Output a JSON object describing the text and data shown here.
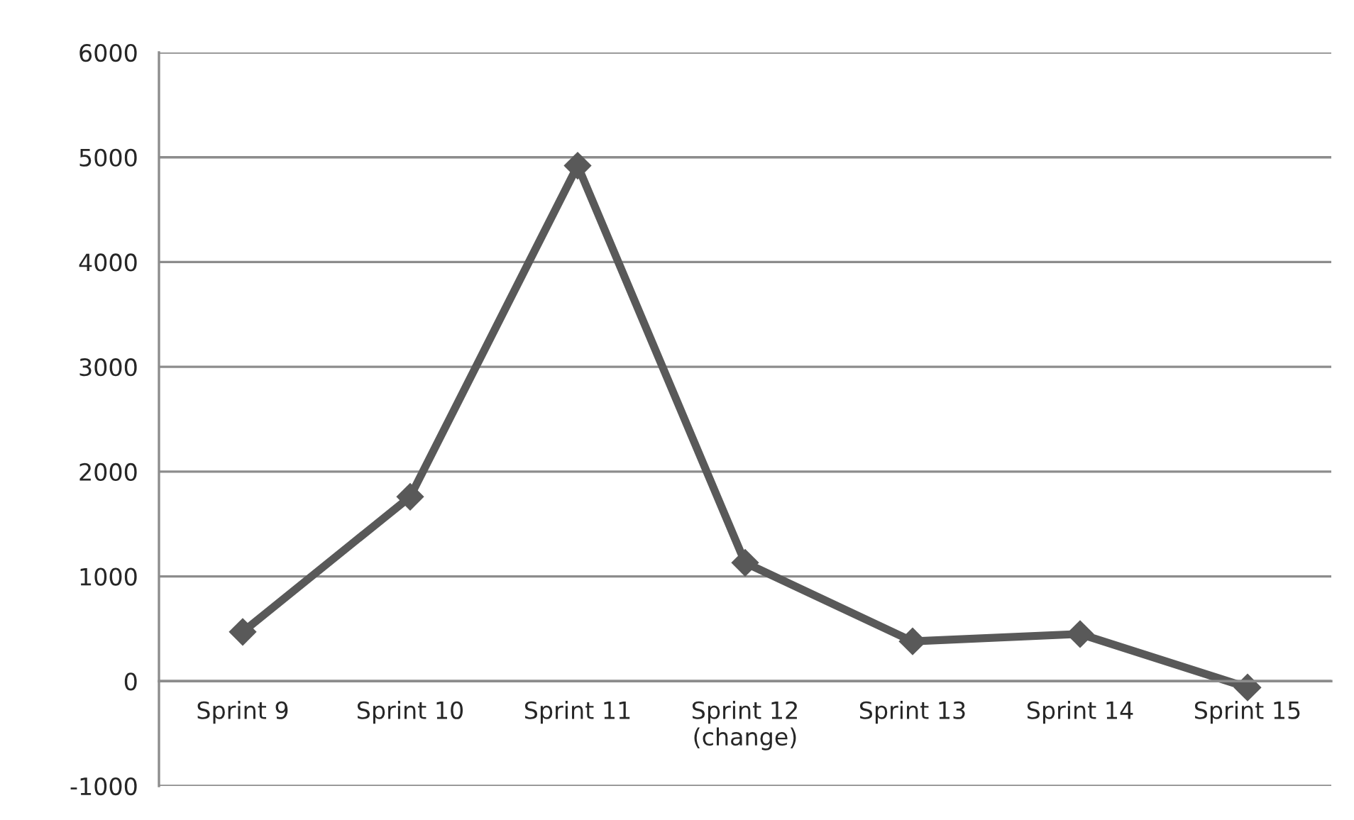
{
  "chart_data": {
    "type": "line",
    "categories": [
      "Sprint 9",
      "Sprint 10",
      "Sprint 11",
      "Sprint 12\n(change)",
      "Sprint 13",
      "Sprint 14",
      "Sprint 15"
    ],
    "series": [
      {
        "color": "#595959",
        "values": [
          470,
          1760,
          4920,
          1130,
          380,
          450,
          -60
        ]
      }
    ],
    "ylim": [
      -1000,
      6000
    ],
    "yticks": [
      -1000,
      0,
      1000,
      2000,
      3000,
      4000,
      5000,
      6000
    ],
    "grid": "y",
    "legend": false,
    "marker": "diamond",
    "line_style": "solid"
  }
}
